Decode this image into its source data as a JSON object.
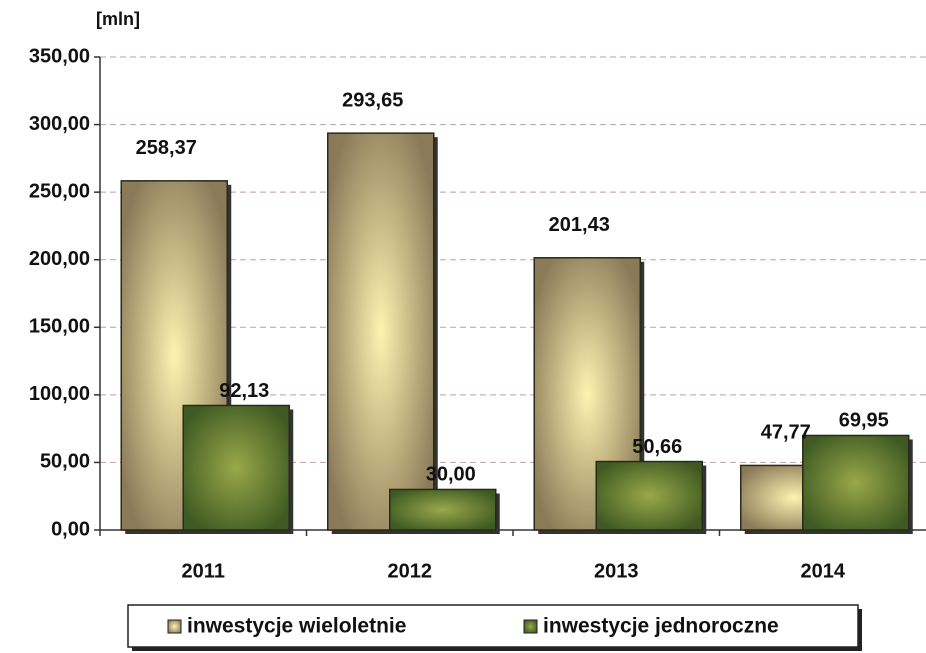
{
  "chart_data": {
    "type": "bar",
    "y_axis_label": "[mln]",
    "categories": [
      "2011",
      "2012",
      "2013",
      "2014"
    ],
    "series": [
      {
        "name": "inwestycje wieloletnie",
        "color": "#8a7a58",
        "values": [
          258.37,
          293.65,
          201.43,
          47.77
        ],
        "value_labels": [
          "258,37",
          "293,65",
          "201,43",
          "47,77"
        ]
      },
      {
        "name": "inwestycje jednoroczne",
        "color": "#3e5a22",
        "values": [
          92.13,
          30.0,
          50.66,
          69.95
        ],
        "value_labels": [
          "92,13",
          "30,00",
          "50,66",
          "69,95"
        ]
      }
    ],
    "ylim": [
      0,
      350
    ],
    "yticks": [
      {
        "value": 0,
        "label": "0,00"
      },
      {
        "value": 50,
        "label": "50,00"
      },
      {
        "value": 100,
        "label": "100,00"
      },
      {
        "value": 150,
        "label": "150,00"
      },
      {
        "value": 200,
        "label": "200,00"
      },
      {
        "value": 250,
        "label": "250,00"
      },
      {
        "value": 300,
        "label": "300,00"
      },
      {
        "value": 350,
        "label": "350,00"
      }
    ],
    "grid": true
  }
}
